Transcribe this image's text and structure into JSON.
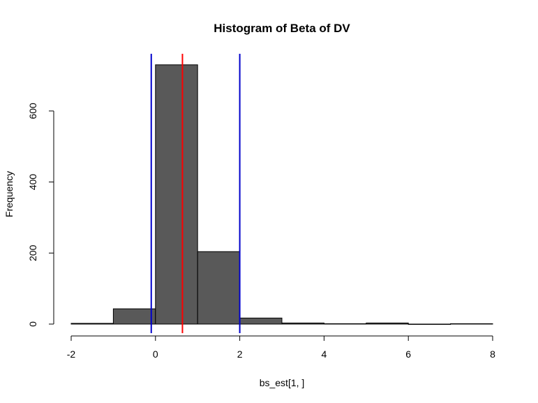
{
  "chart_data": {
    "type": "bar",
    "title": "Histogram of Beta of DV",
    "xlabel": "bs_est[1, ]",
    "ylabel": "Frequency",
    "xlim": [
      -2,
      8
    ],
    "ylim": [
      0,
      730
    ],
    "xticks": [
      "-2",
      "0",
      "2",
      "4",
      "6",
      "8"
    ],
    "yticks": [
      "0",
      "200",
      "400",
      "600"
    ],
    "bins": [
      {
        "x0": -2,
        "x1": -1,
        "count": 2
      },
      {
        "x0": -1,
        "x1": 0,
        "count": 43
      },
      {
        "x0": 0,
        "x1": 1,
        "count": 730
      },
      {
        "x0": 1,
        "x1": 2,
        "count": 204
      },
      {
        "x0": 2,
        "x1": 3,
        "count": 17
      },
      {
        "x0": 3,
        "x1": 4,
        "count": 3
      },
      {
        "x0": 4,
        "x1": 5,
        "count": 1
      },
      {
        "x0": 5,
        "x1": 6,
        "count": 3
      },
      {
        "x0": 6,
        "x1": 7,
        "count": 0
      },
      {
        "x0": 7,
        "x1": 8,
        "count": 1
      }
    ],
    "bar_color": "#595959",
    "vlines": [
      {
        "x": -0.1,
        "color": "#0000cc"
      },
      {
        "x": 0.64,
        "color": "#ff0000"
      },
      {
        "x": 2.0,
        "color": "#0000cc"
      }
    ],
    "grid": false
  }
}
